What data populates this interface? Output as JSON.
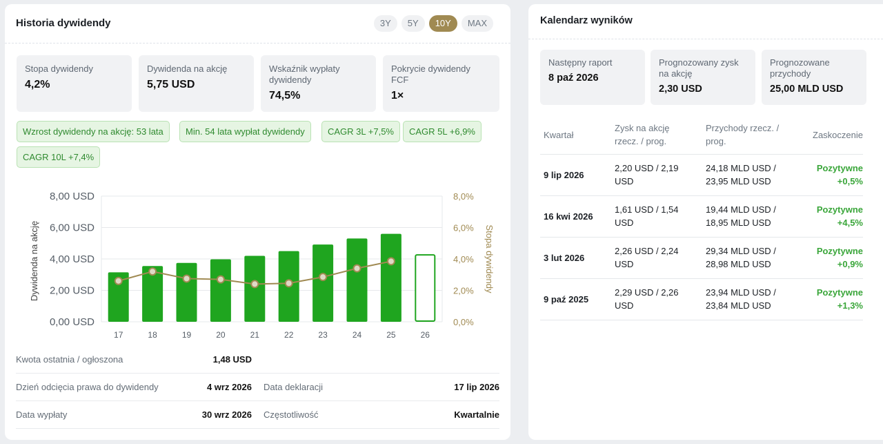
{
  "dividend_history": {
    "title": "Historia dywidendy",
    "periods": [
      "3Y",
      "5Y",
      "10Y",
      "MAX"
    ],
    "active_period": "10Y",
    "stats": [
      {
        "label": "Stopa dywidendy",
        "value": "4,2%"
      },
      {
        "label": "Dywidenda na akcję",
        "value": "5,75 USD"
      },
      {
        "label": "Wskaźnik wypłaty dywidendy",
        "value": "74,5%"
      },
      {
        "label": "Pokrycie dywidendy FCF",
        "value": "1×"
      }
    ],
    "tags": [
      "Wzrost dywidendy na akcję: 53 lata",
      "Min. 54 lata wypłat dywidendy",
      "CAGR 3L +7,5%",
      "CAGR 5L +6,9%",
      "CAGR 10L +7,4%"
    ],
    "info": {
      "last_amount_label": "Kwota ostatnia / ogłoszona",
      "last_amount_value": "1,48 USD",
      "ex_date_label": "Dzień odcięcia prawa do dywidendy",
      "ex_date_value": "4 wrz 2026",
      "declaration_label": "Data deklaracji",
      "declaration_value": "17 lip 2026",
      "payment_label": "Data wypłaty",
      "payment_value": "30 wrz 2026",
      "frequency_label": "Częstotliwość",
      "frequency_value": "Kwartalnie"
    }
  },
  "chart_data": {
    "type": "bar",
    "categories": [
      "17",
      "18",
      "19",
      "20",
      "21",
      "22",
      "23",
      "24",
      "25",
      "26"
    ],
    "ylabel": "Dywidenda na akcję",
    "y2label": "Stopa dywidendy",
    "ylim": [
      0,
      8
    ],
    "y2lim": [
      0,
      8
    ],
    "yticks": [
      "0,00 USD",
      "2,00 USD",
      "4,00 USD",
      "6,00 USD",
      "8,00 USD"
    ],
    "y2ticks": [
      "0,0%",
      "2,0%",
      "4,0%",
      "6,0%",
      "8,0%"
    ],
    "series": [
      {
        "values": [
          3.15,
          3.55,
          3.75,
          3.98,
          4.2,
          4.5,
          4.92,
          5.3,
          5.6,
          4.3
        ],
        "projected_last": true
      },
      {
        "values": [
          2.6,
          3.2,
          2.75,
          2.7,
          2.4,
          2.45,
          2.85,
          3.4,
          3.85,
          null
        ]
      }
    ],
    "grid": true,
    "colors": {
      "bar": "#1fa51f",
      "line": "#a08a52",
      "dot_fill": "#ded9c6"
    }
  },
  "earnings_calendar": {
    "title": "Kalendarz wyników",
    "stats": [
      {
        "label": "Następny raport",
        "value": "8 paź 2026"
      },
      {
        "label": "Prognozowany zysk na akcję",
        "value": "2,30 USD"
      },
      {
        "label": "Prognozowane przychody",
        "value": "25,00 MLD USD"
      }
    ],
    "columns": [
      "Kwartał",
      "Zysk na akcję rzecz. / prog.",
      "Przychody rzecz. / prog.",
      "Zaskoczenie"
    ],
    "rows": [
      {
        "quarter": "9 lip 2026",
        "eps": "2,20 USD / 2,19 USD",
        "rev": "24,18 MLD USD / 23,95 MLD USD",
        "surprise": "Pozytywne",
        "surprise_pct": "+0,5%"
      },
      {
        "quarter": "16 kwi 2026",
        "eps": "1,61 USD / 1,54 USD",
        "rev": "19,44 MLD USD / 18,95 MLD USD",
        "surprise": "Pozytywne",
        "surprise_pct": "+4,5%"
      },
      {
        "quarter": "3 lut 2026",
        "eps": "2,26 USD / 2,24 USD",
        "rev": "29,34 MLD USD / 28,98 MLD USD",
        "surprise": "Pozytywne",
        "surprise_pct": "+0,9%"
      },
      {
        "quarter": "9 paź 2025",
        "eps": "2,29 USD / 2,26 USD",
        "rev": "23,94 MLD USD / 23,84 MLD USD",
        "surprise": "Pozytywne",
        "surprise_pct": "+1,3%"
      }
    ]
  }
}
